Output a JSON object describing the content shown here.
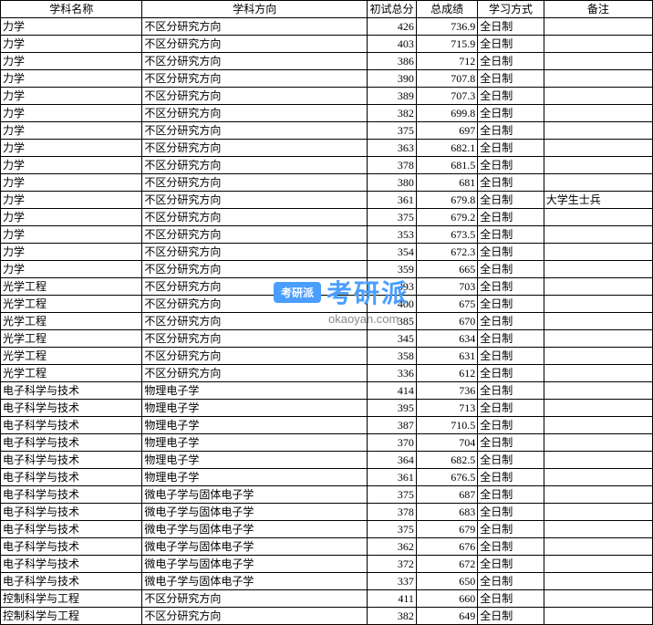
{
  "table": {
    "columns": [
      "学科名称",
      "学科方向",
      "初试总分",
      "总成绩",
      "学习方式",
      "备注"
    ],
    "rows": [
      [
        "力学",
        "不区分研究方向",
        "426",
        "736.9",
        "全日制",
        ""
      ],
      [
        "力学",
        "不区分研究方向",
        "403",
        "715.9",
        "全日制",
        ""
      ],
      [
        "力学",
        "不区分研究方向",
        "386",
        "712",
        "全日制",
        ""
      ],
      [
        "力学",
        "不区分研究方向",
        "390",
        "707.8",
        "全日制",
        ""
      ],
      [
        "力学",
        "不区分研究方向",
        "389",
        "707.3",
        "全日制",
        ""
      ],
      [
        "力学",
        "不区分研究方向",
        "382",
        "699.8",
        "全日制",
        ""
      ],
      [
        "力学",
        "不区分研究方向",
        "375",
        "697",
        "全日制",
        ""
      ],
      [
        "力学",
        "不区分研究方向",
        "363",
        "682.1",
        "全日制",
        ""
      ],
      [
        "力学",
        "不区分研究方向",
        "378",
        "681.5",
        "全日制",
        ""
      ],
      [
        "力学",
        "不区分研究方向",
        "380",
        "681",
        "全日制",
        ""
      ],
      [
        "力学",
        "不区分研究方向",
        "361",
        "679.8",
        "全日制",
        "大学生士兵"
      ],
      [
        "力学",
        "不区分研究方向",
        "375",
        "679.2",
        "全日制",
        ""
      ],
      [
        "力学",
        "不区分研究方向",
        "353",
        "673.5",
        "全日制",
        ""
      ],
      [
        "力学",
        "不区分研究方向",
        "354",
        "672.3",
        "全日制",
        ""
      ],
      [
        "力学",
        "不区分研究方向",
        "359",
        "665",
        "全日制",
        ""
      ],
      [
        "光学工程",
        "不区分研究方向",
        "393",
        "703",
        "全日制",
        ""
      ],
      [
        "光学工程",
        "不区分研究方向",
        "400",
        "675",
        "全日制",
        ""
      ],
      [
        "光学工程",
        "不区分研究方向",
        "385",
        "670",
        "全日制",
        ""
      ],
      [
        "光学工程",
        "不区分研究方向",
        "345",
        "634",
        "全日制",
        ""
      ],
      [
        "光学工程",
        "不区分研究方向",
        "358",
        "631",
        "全日制",
        ""
      ],
      [
        "光学工程",
        "不区分研究方向",
        "336",
        "612",
        "全日制",
        ""
      ],
      [
        "电子科学与技术",
        "物理电子学",
        "414",
        "736",
        "全日制",
        ""
      ],
      [
        "电子科学与技术",
        "物理电子学",
        "395",
        "713",
        "全日制",
        ""
      ],
      [
        "电子科学与技术",
        "物理电子学",
        "387",
        "710.5",
        "全日制",
        ""
      ],
      [
        "电子科学与技术",
        "物理电子学",
        "370",
        "704",
        "全日制",
        ""
      ],
      [
        "电子科学与技术",
        "物理电子学",
        "364",
        "682.5",
        "全日制",
        ""
      ],
      [
        "电子科学与技术",
        "物理电子学",
        "361",
        "676.5",
        "全日制",
        ""
      ],
      [
        "电子科学与技术",
        "微电子学与固体电子学",
        "375",
        "687",
        "全日制",
        ""
      ],
      [
        "电子科学与技术",
        "微电子学与固体电子学",
        "378",
        "683",
        "全日制",
        ""
      ],
      [
        "电子科学与技术",
        "微电子学与固体电子学",
        "375",
        "679",
        "全日制",
        ""
      ],
      [
        "电子科学与技术",
        "微电子学与固体电子学",
        "362",
        "676",
        "全日制",
        ""
      ],
      [
        "电子科学与技术",
        "微电子学与固体电子学",
        "372",
        "672",
        "全日制",
        ""
      ],
      [
        "电子科学与技术",
        "微电子学与固体电子学",
        "337",
        "650",
        "全日制",
        ""
      ],
      [
        "控制科学与工程",
        "不区分研究方向",
        "411",
        "660",
        "全日制",
        ""
      ],
      [
        "控制科学与工程",
        "不区分研究方向",
        "382",
        "649",
        "全日制",
        ""
      ]
    ]
  },
  "watermark": {
    "badge": "考研派",
    "text": "考研派",
    "url": "okaoyan.com"
  }
}
